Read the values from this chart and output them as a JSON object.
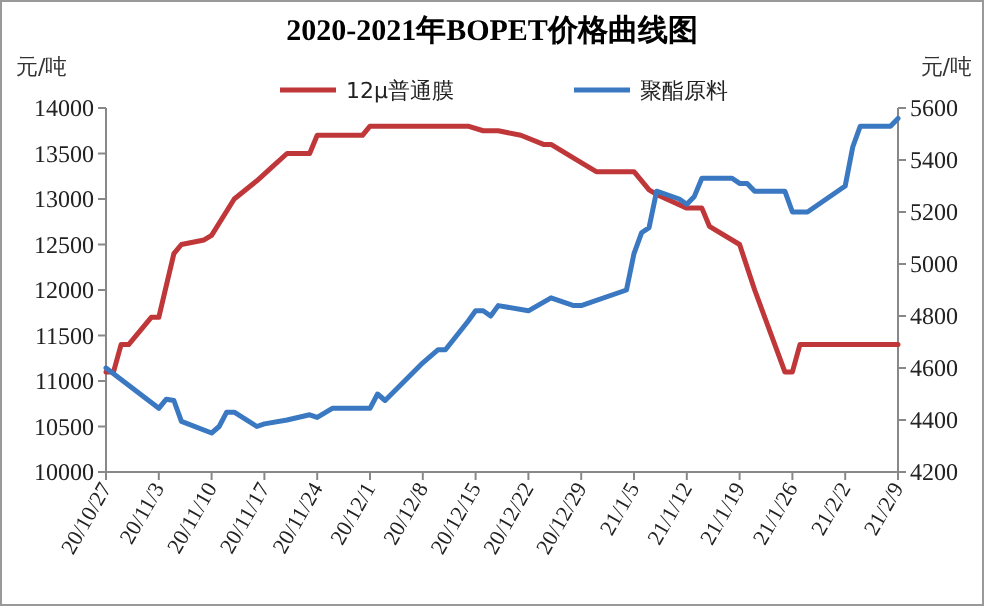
{
  "chart_data": {
    "type": "line",
    "title": "2020-2021年BOPET价格曲线图",
    "ylabel": "元/吨",
    "y2label": "元/吨",
    "legend": "top",
    "marker": "none",
    "line_style": "solid",
    "xlim": [
      "2020-10-27",
      "2021-02-09"
    ],
    "xticks": [
      {
        "value": "2020-10-27",
        "label": "20/10/27"
      },
      {
        "value": "2020-11-03",
        "label": "20/11/3"
      },
      {
        "value": "2020-11-10",
        "label": "20/11/10"
      },
      {
        "value": "2020-11-17",
        "label": "20/11/17"
      },
      {
        "value": "2020-11-24",
        "label": "20/11/24"
      },
      {
        "value": "2020-12-01",
        "label": "20/12/1"
      },
      {
        "value": "2020-12-08",
        "label": "20/12/8"
      },
      {
        "value": "2020-12-15",
        "label": "20/12/15"
      },
      {
        "value": "2020-12-22",
        "label": "20/12/22"
      },
      {
        "value": "2020-12-29",
        "label": "20/12/29"
      },
      {
        "value": "2021-01-05",
        "label": "21/1/5"
      },
      {
        "value": "2021-01-12",
        "label": "21/1/12"
      },
      {
        "value": "2021-01-19",
        "label": "21/1/19"
      },
      {
        "value": "2021-01-26",
        "label": "21/1/26"
      },
      {
        "value": "2021-02-02",
        "label": "21/2/2"
      },
      {
        "value": "2021-02-09",
        "label": "21/2/9"
      }
    ],
    "ylim": [
      10000,
      14000
    ],
    "yticks": [
      10000,
      10500,
      11000,
      11500,
      12000,
      12500,
      13000,
      13500,
      14000
    ],
    "y2lim": [
      4200,
      5600
    ],
    "y2ticks": [
      4200,
      4400,
      4600,
      4800,
      5000,
      5200,
      5400,
      5600
    ],
    "series": [
      {
        "name": "12μ普通膜",
        "color": "#c0373a",
        "x": [
          "2020-10-27",
          "2020-10-28",
          "2020-10-29",
          "2020-10-30",
          "2020-11-02",
          "2020-11-03",
          "2020-11-05",
          "2020-11-06",
          "2020-11-09",
          "2020-11-10",
          "2020-11-13",
          "2020-11-16",
          "2020-11-18",
          "2020-11-20",
          "2020-11-23",
          "2020-11-24",
          "2020-11-30",
          "2020-12-01",
          "2020-12-14",
          "2020-12-16",
          "2020-12-18",
          "2020-12-21",
          "2020-12-24",
          "2020-12-25",
          "2020-12-29",
          "2020-12-31",
          "2021-01-05",
          "2021-01-07",
          "2021-01-08",
          "2021-01-12",
          "2021-01-14",
          "2021-01-15",
          "2021-01-19",
          "2021-01-20",
          "2021-01-21",
          "2021-01-25",
          "2021-01-26",
          "2021-01-27",
          "2021-02-09"
        ],
        "values": [
          11100,
          11100,
          11400,
          11400,
          11700,
          11700,
          12400,
          12500,
          12550,
          12600,
          13000,
          13200,
          13350,
          13500,
          13500,
          13700,
          13700,
          13800,
          13800,
          13750,
          13750,
          13700,
          13600,
          13600,
          13400,
          13300,
          13300,
          13100,
          13050,
          12900,
          12900,
          12700,
          12500,
          12250,
          12000,
          11100,
          11100,
          11400,
          11400
        ]
      },
      {
        "name": "聚酯原料",
        "color": "#3a78c2",
        "axis": "y2",
        "x": [
          "2020-10-27",
          "2020-11-03",
          "2020-11-04",
          "2020-11-05",
          "2020-11-06",
          "2020-11-10",
          "2020-11-11",
          "2020-11-12",
          "2020-11-13",
          "2020-11-16",
          "2020-11-17",
          "2020-11-20",
          "2020-11-23",
          "2020-11-24",
          "2020-11-26",
          "2020-12-01",
          "2020-12-02",
          "2020-12-03",
          "2020-12-08",
          "2020-12-10",
          "2020-12-11",
          "2020-12-14",
          "2020-12-15",
          "2020-12-16",
          "2020-12-17",
          "2020-12-18",
          "2020-12-22",
          "2020-12-25",
          "2020-12-28",
          "2020-12-29",
          "2021-01-04",
          "2021-01-05",
          "2021-01-06",
          "2021-01-07",
          "2021-01-08",
          "2021-01-11",
          "2021-01-12",
          "2021-01-13",
          "2021-01-14",
          "2021-01-18",
          "2021-01-19",
          "2021-01-20",
          "2021-01-21",
          "2021-01-25",
          "2021-01-26",
          "2021-01-28",
          "2021-02-02",
          "2021-02-03",
          "2021-02-04",
          "2021-02-08",
          "2021-02-09"
        ],
        "values": [
          4600,
          4445,
          4480,
          4475,
          4395,
          4350,
          4375,
          4430,
          4430,
          4375,
          4385,
          4400,
          4420,
          4410,
          4445,
          4445,
          4500,
          4475,
          4620,
          4670,
          4670,
          4780,
          4820,
          4820,
          4800,
          4840,
          4820,
          4870,
          4840,
          4840,
          4900,
          5040,
          5120,
          5140,
          5280,
          5250,
          5230,
          5260,
          5330,
          5330,
          5310,
          5310,
          5280,
          5280,
          5200,
          5200,
          5300,
          5450,
          5530,
          5530,
          5560
        ]
      }
    ]
  }
}
